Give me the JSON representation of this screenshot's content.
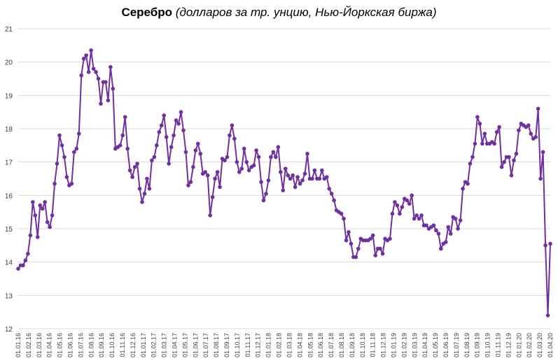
{
  "chart_data": {
    "type": "line",
    "title": "Серебро",
    "subtitle": "(долларов за тр. унцию, Нью-Йоркская биржа)",
    "xlabel": "",
    "ylabel": "",
    "ylim": [
      12,
      21
    ],
    "yticks": [
      12,
      13,
      14,
      15,
      16,
      17,
      18,
      19,
      20,
      21
    ],
    "grid": true,
    "legend": "none",
    "colors": {
      "line": "#7030A0",
      "grid": "#d9d9d9",
      "tick_text": "#404040"
    },
    "x_tick_labels": [
      "01.01.16",
      "01.02.16",
      "01.03.16",
      "01.04.16",
      "01.05.16",
      "01.06.16",
      "01.07.16",
      "01.08.16",
      "01.09.16",
      "01.10.16",
      "01.11.16",
      "01.12.16",
      "01.01.17",
      "01.02.17",
      "01.03.17",
      "01.04.17",
      "01.05.17",
      "01.06.17",
      "01.07.17",
      "01.08.17",
      "01.09.17",
      "01.10.17",
      "01.11.17",
      "01.12.17",
      "01.01.18",
      "01.02.18",
      "01.03.18",
      "01.04.18",
      "01.05.18",
      "01.06.18",
      "01.07.18",
      "01.08.18",
      "01.09.18",
      "01.10.18",
      "01.11.18",
      "01.12.18",
      "01.01.19",
      "01.02.19",
      "01.03.19",
      "01.04.19",
      "01.05.19",
      "01.06.19",
      "01.07.19",
      "01.08.19",
      "01.09.19",
      "01.10.19",
      "01.11.19",
      "01.12.19",
      "01.01.20",
      "01.02.20",
      "01.03.20",
      "01.04.20"
    ],
    "series": [
      {
        "values": [
          13.8,
          13.9,
          13.9,
          14.05,
          14.25,
          14.8,
          15.8,
          15.4,
          14.75,
          15.7,
          15.6,
          15.8,
          15.2,
          15.05,
          15.4,
          16.35,
          16.95,
          17.8,
          17.5,
          17.15,
          16.55,
          16.3,
          16.35,
          17.3,
          17.4,
          17.85,
          19.6,
          20.1,
          20.2,
          19.7,
          20.35,
          19.8,
          19.7,
          19.5,
          18.75,
          19.4,
          19.4,
          18.85,
          19.85,
          19.2,
          17.4,
          17.45,
          17.5,
          17.8,
          18.35,
          17.4,
          16.75,
          16.55,
          16.85,
          16.95,
          16.2,
          15.8,
          16.05,
          16.5,
          16.2,
          17.05,
          17.15,
          17.5,
          17.9,
          18.1,
          18.4,
          17.75,
          16.95,
          17.45,
          17.8,
          18.25,
          18.15,
          18.5,
          17.95,
          17.3,
          16.3,
          16.4,
          16.85,
          17.35,
          17.55,
          17.25,
          16.65,
          16.7,
          16.6,
          15.4,
          15.95,
          16.5,
          16.7,
          16.25,
          17.1,
          17.05,
          17.15,
          17.8,
          18.1,
          17.7,
          17.0,
          16.7,
          16.8,
          17.4,
          17.0,
          16.75,
          16.85,
          16.9,
          17.35,
          17.15,
          16.4,
          15.85,
          16.05,
          16.45,
          17.15,
          17.3,
          17.15,
          17.45,
          16.7,
          16.15,
          16.8,
          16.6,
          16.5,
          16.6,
          16.25,
          16.55,
          16.35,
          16.45,
          16.65,
          17.25,
          16.5,
          16.5,
          16.75,
          16.5,
          16.5,
          16.75,
          16.5,
          16.55,
          16.2,
          16.05,
          15.85,
          15.55,
          15.5,
          15.45,
          15.3,
          14.65,
          14.9,
          14.55,
          14.15,
          14.15,
          14.4,
          14.7,
          14.65,
          14.65,
          14.65,
          14.7,
          14.8,
          14.2,
          14.4,
          14.4,
          14.25,
          14.7,
          14.65,
          14.7,
          15.45,
          15.8,
          15.7,
          15.45,
          15.65,
          15.9,
          15.85,
          15.75,
          16.0,
          15.3,
          15.4,
          15.3,
          15.4,
          15.1,
          15.1,
          15.0,
          15.05,
          15.1,
          14.95,
          14.85,
          14.4,
          14.55,
          14.6,
          15.05,
          14.85,
          15.35,
          15.3,
          15.0,
          15.25,
          16.2,
          16.4,
          16.35,
          16.95,
          17.15,
          17.55,
          18.35,
          18.15,
          17.55,
          17.85,
          17.55,
          17.55,
          17.6,
          17.55,
          17.9,
          18.05,
          16.85,
          17.0,
          17.15,
          17.15,
          16.6,
          17.05,
          17.25,
          17.95,
          18.15,
          18.1,
          18.05,
          18.1,
          17.85,
          17.7,
          17.75,
          18.6,
          16.5,
          17.3,
          14.5,
          12.4,
          14.55
        ]
      }
    ]
  }
}
